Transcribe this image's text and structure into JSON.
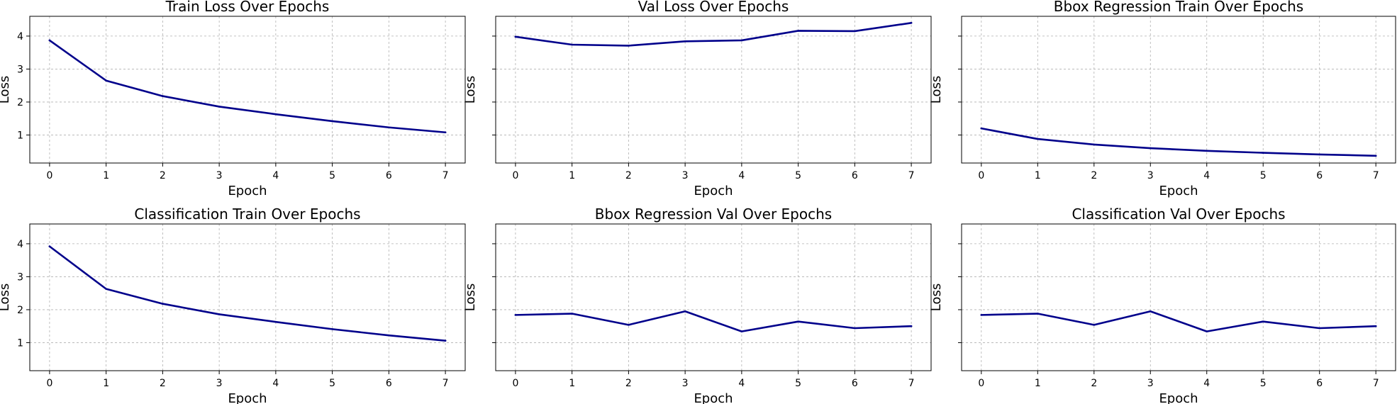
{
  "colors": {
    "line": "#00008b",
    "grid": "#b0b0b0",
    "axes": "#000000"
  },
  "chart_data": [
    {
      "type": "line",
      "title": "Train Loss Over Epochs",
      "xlabel": "Epoch",
      "ylabel": "Loss",
      "x": [
        0,
        1,
        2,
        3,
        4,
        5,
        6,
        7
      ],
      "series": [
        {
          "values": [
            3.87,
            2.65,
            2.18,
            1.86,
            1.63,
            1.42,
            1.23,
            1.08
          ]
        }
      ],
      "xlim": [
        -0.35,
        7.35
      ],
      "ylim": [
        0.15,
        4.6
      ],
      "xticks": [
        "0",
        "1",
        "2",
        "3",
        "4",
        "5",
        "6",
        "7"
      ],
      "yticks": [
        "1",
        "2",
        "3",
        "4"
      ],
      "grid": true,
      "show_yticklabels": true
    },
    {
      "type": "line",
      "title": "Val Loss Over Epochs",
      "xlabel": "Epoch",
      "ylabel": "Loss",
      "x": [
        0,
        1,
        2,
        3,
        4,
        5,
        6,
        7
      ],
      "series": [
        {
          "values": [
            3.98,
            3.74,
            3.71,
            3.84,
            3.87,
            4.16,
            4.15,
            4.4
          ]
        }
      ],
      "xlim": [
        -0.35,
        7.35
      ],
      "ylim": [
        0.15,
        4.6
      ],
      "xticks": [
        "0",
        "1",
        "2",
        "3",
        "4",
        "5",
        "6",
        "7"
      ],
      "yticks": [
        "1",
        "2",
        "3",
        "4"
      ],
      "grid": true,
      "show_yticklabels": false
    },
    {
      "type": "line",
      "title": "Bbox Regression Train Over Epochs",
      "xlabel": "Epoch",
      "ylabel": "Loss",
      "x": [
        0,
        1,
        2,
        3,
        4,
        5,
        6,
        7
      ],
      "series": [
        {
          "values": [
            1.2,
            0.88,
            0.71,
            0.6,
            0.52,
            0.46,
            0.41,
            0.37
          ]
        }
      ],
      "xlim": [
        -0.35,
        7.35
      ],
      "ylim": [
        0.15,
        4.6
      ],
      "xticks": [
        "0",
        "1",
        "2",
        "3",
        "4",
        "5",
        "6",
        "7"
      ],
      "yticks": [
        "1",
        "2",
        "3",
        "4"
      ],
      "grid": true,
      "show_yticklabels": false
    },
    {
      "type": "line",
      "title": "Classification Train Over Epochs",
      "xlabel": "Epoch",
      "ylabel": "Loss",
      "x": [
        0,
        1,
        2,
        3,
        4,
        5,
        6,
        7
      ],
      "series": [
        {
          "values": [
            3.92,
            2.63,
            2.18,
            1.86,
            1.63,
            1.41,
            1.22,
            1.06
          ]
        }
      ],
      "xlim": [
        -0.35,
        7.35
      ],
      "ylim": [
        0.15,
        4.6
      ],
      "xticks": [
        "0",
        "1",
        "2",
        "3",
        "4",
        "5",
        "6",
        "7"
      ],
      "yticks": [
        "1",
        "2",
        "3",
        "4"
      ],
      "grid": true,
      "show_yticklabels": true
    },
    {
      "type": "line",
      "title": "Bbox Regression Val Over Epochs",
      "xlabel": "Epoch",
      "ylabel": "Loss",
      "x": [
        0,
        1,
        2,
        3,
        4,
        5,
        6,
        7
      ],
      "series": [
        {
          "values": [
            1.84,
            1.88,
            1.54,
            1.95,
            1.34,
            1.64,
            1.44,
            1.5
          ]
        }
      ],
      "xlim": [
        -0.35,
        7.35
      ],
      "ylim": [
        0.15,
        4.6
      ],
      "xticks": [
        "0",
        "1",
        "2",
        "3",
        "4",
        "5",
        "6",
        "7"
      ],
      "yticks": [
        "1",
        "2",
        "3",
        "4"
      ],
      "grid": true,
      "show_yticklabels": false
    },
    {
      "type": "line",
      "title": "Classification Val Over Epochs",
      "xlabel": "Epoch",
      "ylabel": "Loss",
      "x": [
        0,
        1,
        2,
        3,
        4,
        5,
        6,
        7
      ],
      "series": [
        {
          "values": [
            1.84,
            1.88,
            1.54,
            1.95,
            1.34,
            1.64,
            1.44,
            1.5
          ]
        }
      ],
      "xlim": [
        -0.35,
        7.35
      ],
      "ylim": [
        0.15,
        4.6
      ],
      "xticks": [
        "0",
        "1",
        "2",
        "3",
        "4",
        "5",
        "6",
        "7"
      ],
      "yticks": [
        "1",
        "2",
        "3",
        "4"
      ],
      "grid": true,
      "show_yticklabels": false
    }
  ]
}
